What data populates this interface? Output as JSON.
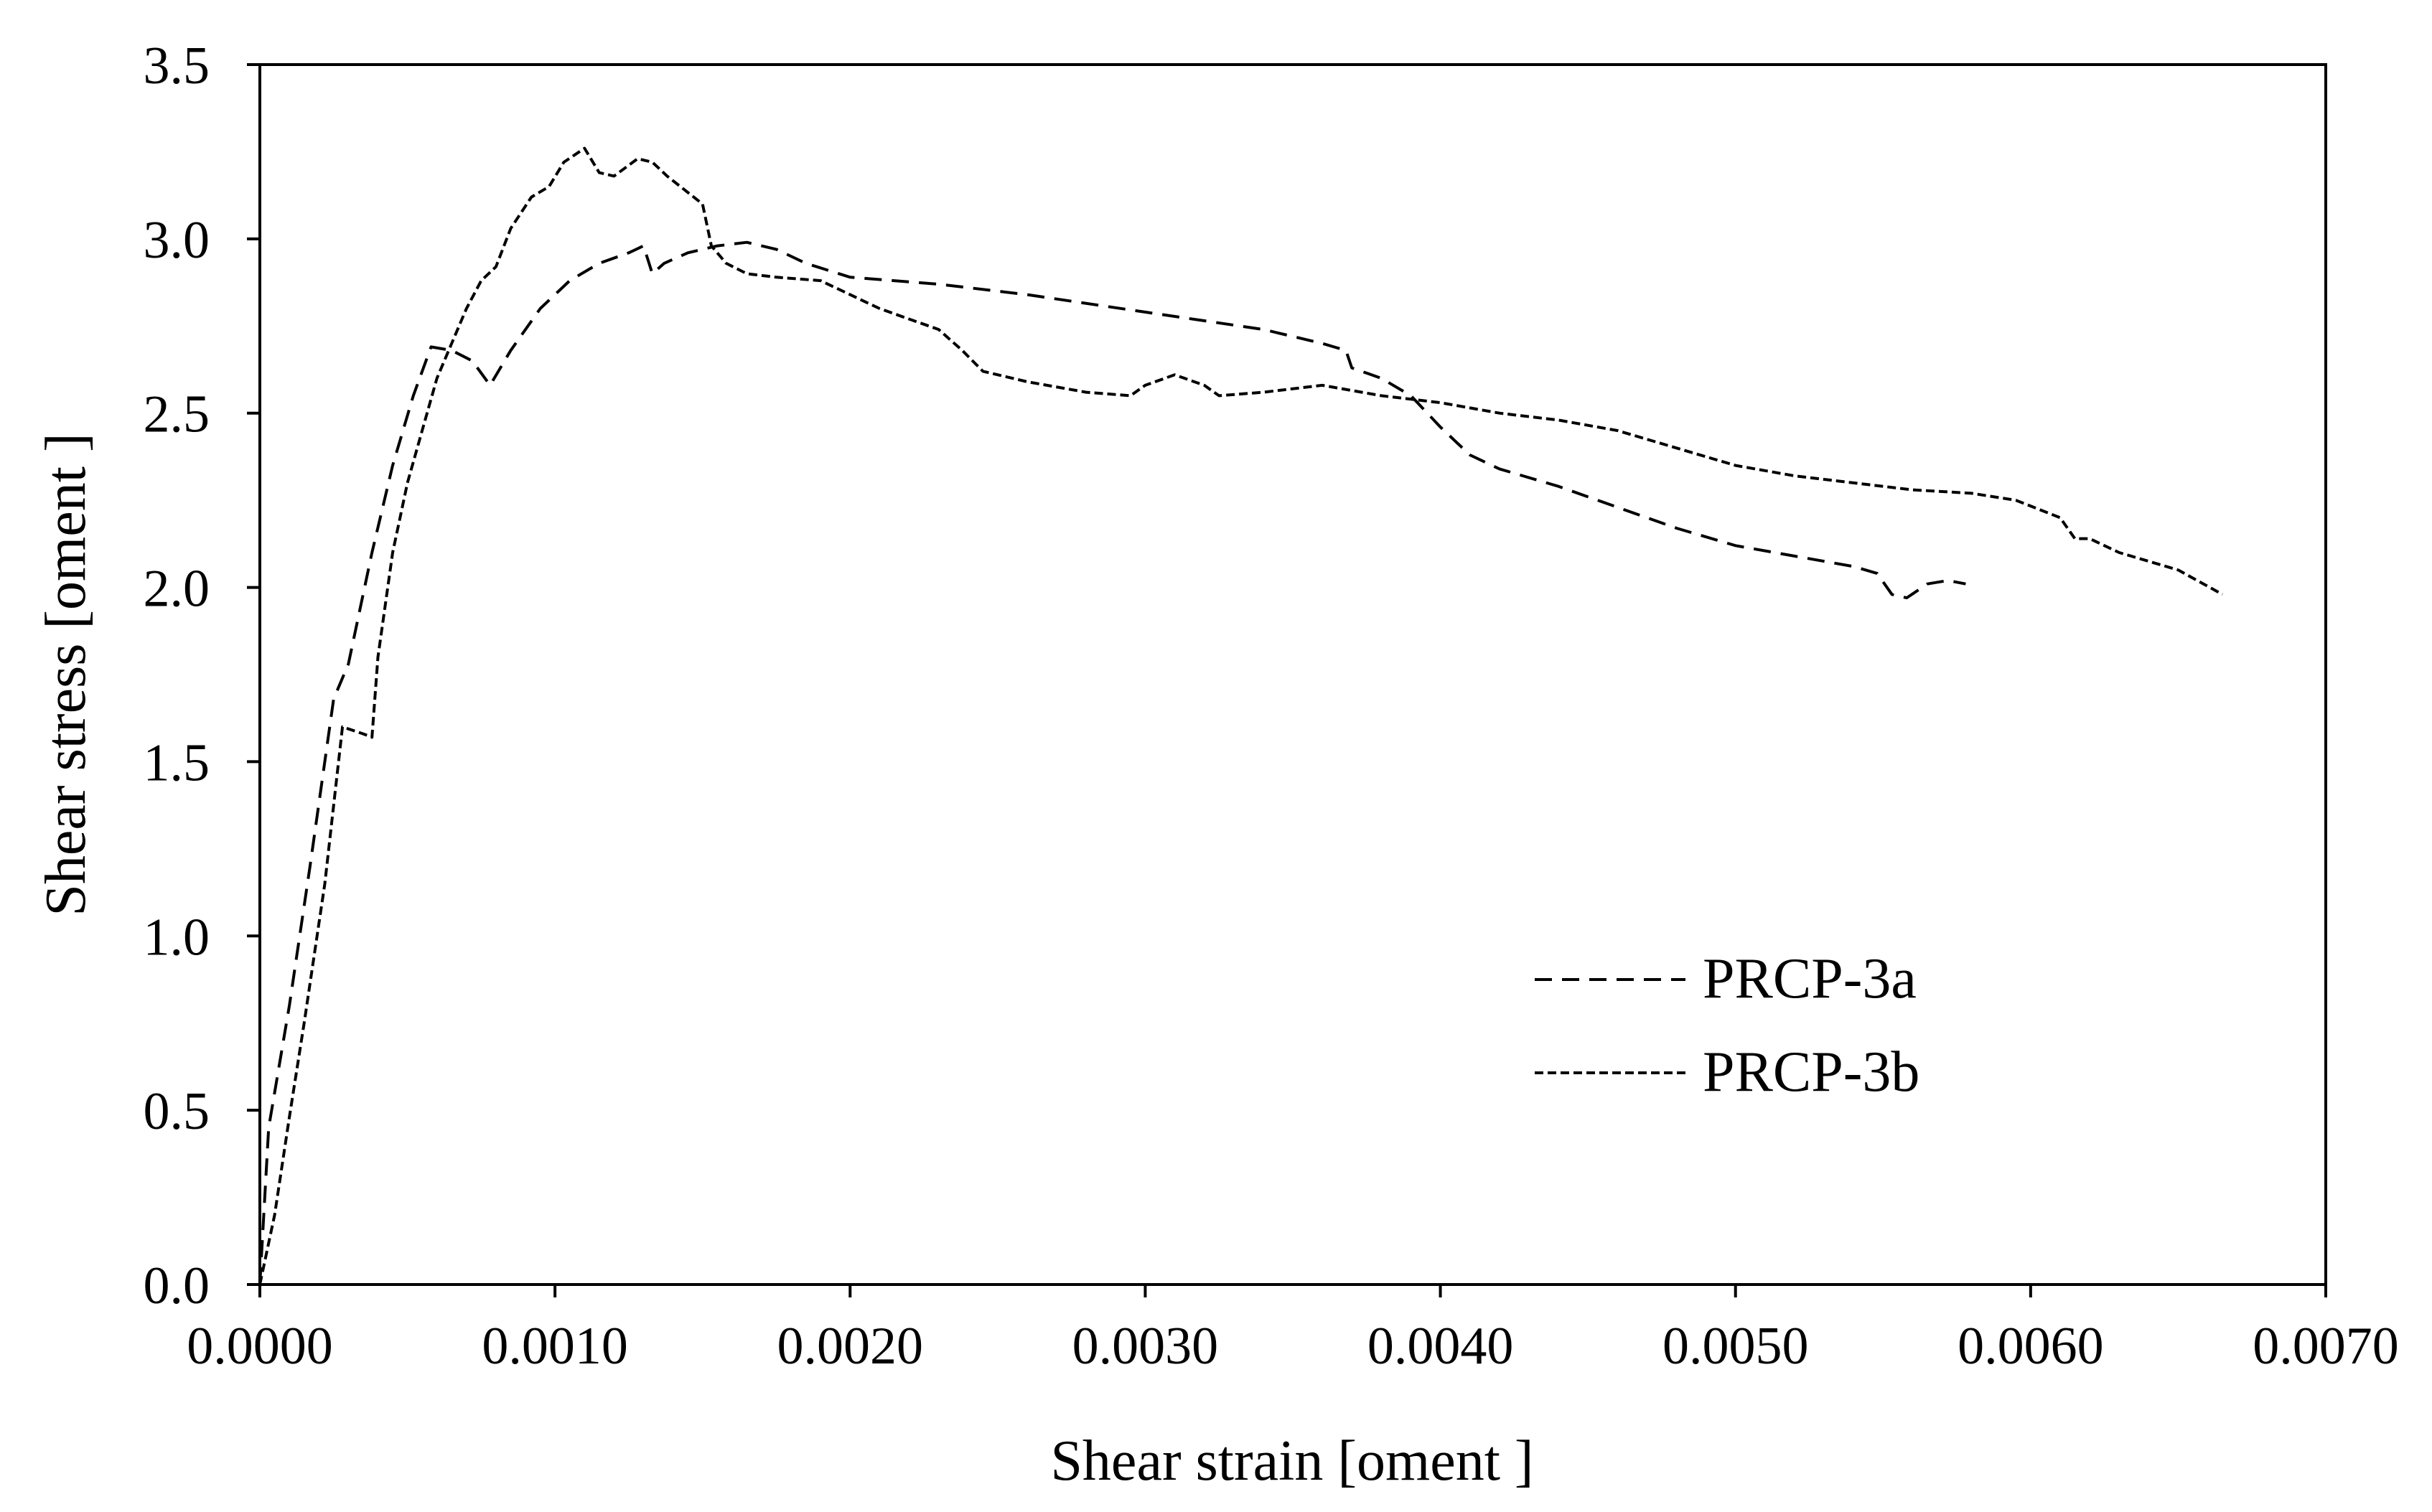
{
  "chart_data": {
    "type": "line",
    "title": "",
    "xlabel": "Shear strain [oment ]",
    "ylabel": "Shear stress [oment ]",
    "xlim": [
      0,
      0.007
    ],
    "ylim": [
      0,
      3.5
    ],
    "xticks": [
      "0.0000",
      "0.0010",
      "0.0020",
      "0.0030",
      "0.0040",
      "0.0050",
      "0.0060",
      "0.0070"
    ],
    "yticks": [
      "0.0",
      "0.5",
      "1.0",
      "1.5",
      "2.0",
      "2.5",
      "3.0",
      "3.5"
    ],
    "grid": false,
    "legend_position": "lower-right",
    "series": [
      {
        "name": "PRCP-3a",
        "line_style": "dashed",
        "color": "#000000",
        "points": [
          [
            0.0,
            0.0
          ],
          [
            3e-05,
            0.45
          ],
          [
            0.0001,
            0.8
          ],
          [
            0.00017,
            1.2
          ],
          [
            0.00025,
            1.68
          ],
          [
            0.0003,
            1.78
          ],
          [
            0.00038,
            2.1
          ],
          [
            0.00045,
            2.35
          ],
          [
            0.00052,
            2.55
          ],
          [
            0.00058,
            2.69
          ],
          [
            0.00065,
            2.68
          ],
          [
            0.00072,
            2.65
          ],
          [
            0.00078,
            2.58
          ],
          [
            0.00085,
            2.68
          ],
          [
            0.00095,
            2.8
          ],
          [
            0.00105,
            2.88
          ],
          [
            0.00115,
            2.93
          ],
          [
            0.00125,
            2.96
          ],
          [
            0.0013,
            2.98
          ],
          [
            0.00133,
            2.9
          ],
          [
            0.00137,
            2.93
          ],
          [
            0.00145,
            2.96
          ],
          [
            0.00155,
            2.98
          ],
          [
            0.00165,
            2.99
          ],
          [
            0.00175,
            2.97
          ],
          [
            0.00185,
            2.93
          ],
          [
            0.002,
            2.89
          ],
          [
            0.0023,
            2.87
          ],
          [
            0.0026,
            2.84
          ],
          [
            0.003,
            2.79
          ],
          [
            0.0034,
            2.74
          ],
          [
            0.0036,
            2.7
          ],
          [
            0.00368,
            2.68
          ],
          [
            0.0037,
            2.63
          ],
          [
            0.0038,
            2.6
          ],
          [
            0.0039,
            2.55
          ],
          [
            0.004,
            2.46
          ],
          [
            0.0041,
            2.38
          ],
          [
            0.0042,
            2.34
          ],
          [
            0.0044,
            2.29
          ],
          [
            0.0046,
            2.23
          ],
          [
            0.0048,
            2.17
          ],
          [
            0.005,
            2.12
          ],
          [
            0.0052,
            2.09
          ],
          [
            0.0054,
            2.06
          ],
          [
            0.00548,
            2.04
          ],
          [
            0.00553,
            1.98
          ],
          [
            0.00558,
            1.97
          ],
          [
            0.00565,
            2.01
          ],
          [
            0.00572,
            2.02
          ],
          [
            0.00578,
            2.01
          ]
        ]
      },
      {
        "name": "PRCP-3b",
        "line_style": "dotted-dash",
        "color": "#000000",
        "points": [
          [
            0.0,
            0.0
          ],
          [
            5e-05,
            0.2
          ],
          [
            0.0001,
            0.48
          ],
          [
            0.00015,
            0.75
          ],
          [
            0.00022,
            1.15
          ],
          [
            0.00028,
            1.6
          ],
          [
            0.00035,
            1.58
          ],
          [
            0.00038,
            1.57
          ],
          [
            0.0004,
            1.8
          ],
          [
            0.00045,
            2.1
          ],
          [
            0.0005,
            2.3
          ],
          [
            0.00055,
            2.45
          ],
          [
            0.0006,
            2.6
          ],
          [
            0.00065,
            2.7
          ],
          [
            0.0007,
            2.8
          ],
          [
            0.00075,
            2.88
          ],
          [
            0.0008,
            2.92
          ],
          [
            0.00085,
            3.03
          ],
          [
            0.00092,
            3.12
          ],
          [
            0.00098,
            3.15
          ],
          [
            0.00103,
            3.22
          ],
          [
            0.0011,
            3.26
          ],
          [
            0.00115,
            3.19
          ],
          [
            0.0012,
            3.18
          ],
          [
            0.00128,
            3.23
          ],
          [
            0.00133,
            3.22
          ],
          [
            0.00138,
            3.18
          ],
          [
            0.0015,
            3.1
          ],
          [
            0.00153,
            2.98
          ],
          [
            0.00158,
            2.93
          ],
          [
            0.00165,
            2.9
          ],
          [
            0.00175,
            2.89
          ],
          [
            0.0019,
            2.88
          ],
          [
            0.002,
            2.84
          ],
          [
            0.0021,
            2.8
          ],
          [
            0.0022,
            2.77
          ],
          [
            0.0023,
            2.74
          ],
          [
            0.00238,
            2.68
          ],
          [
            0.00245,
            2.62
          ],
          [
            0.0026,
            2.59
          ],
          [
            0.0028,
            2.56
          ],
          [
            0.00295,
            2.55
          ],
          [
            0.003,
            2.58
          ],
          [
            0.0031,
            2.61
          ],
          [
            0.0032,
            2.58
          ],
          [
            0.00325,
            2.55
          ],
          [
            0.0034,
            2.56
          ],
          [
            0.0036,
            2.58
          ],
          [
            0.0038,
            2.55
          ],
          [
            0.004,
            2.53
          ],
          [
            0.0042,
            2.5
          ],
          [
            0.0044,
            2.48
          ],
          [
            0.0046,
            2.45
          ],
          [
            0.0048,
            2.4
          ],
          [
            0.005,
            2.35
          ],
          [
            0.0052,
            2.32
          ],
          [
            0.0054,
            2.3
          ],
          [
            0.0056,
            2.28
          ],
          [
            0.0058,
            2.27
          ],
          [
            0.00595,
            2.25
          ],
          [
            0.0061,
            2.2
          ],
          [
            0.00615,
            2.14
          ],
          [
            0.0062,
            2.14
          ],
          [
            0.0063,
            2.1
          ],
          [
            0.0065,
            2.05
          ],
          [
            0.00665,
            1.98
          ]
        ]
      }
    ]
  }
}
